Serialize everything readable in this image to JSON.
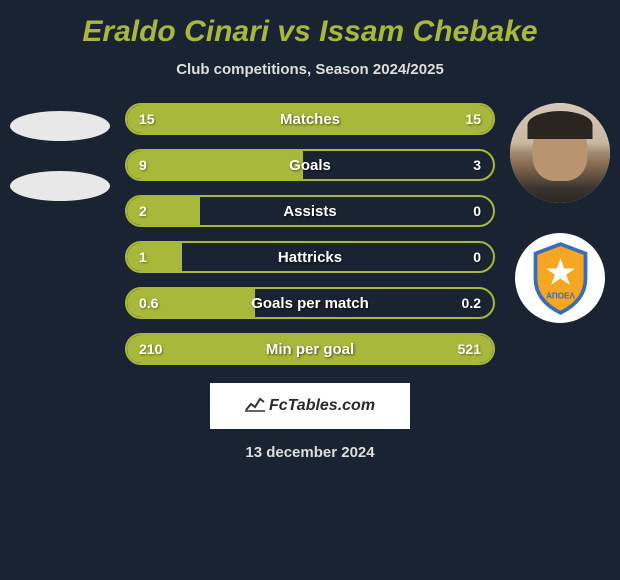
{
  "title": "Eraldo Cinari vs Issam Chebake",
  "subtitle": "Club competitions, Season 2024/2025",
  "date": "13 december 2024",
  "brand": "FcTables.com",
  "colors": {
    "background": "#1a2332",
    "accent": "#a8b83a",
    "text_light": "#ffffff",
    "text_muted": "#dddddd",
    "brand_bg": "#ffffff",
    "brand_text": "#2a2a2a"
  },
  "club_badge": {
    "text": "ΑΠΟΕΛ",
    "shield_fill": "#f5a623",
    "shield_stroke": "#3a6db5",
    "star_fill": "#ffffff"
  },
  "stats": [
    {
      "label": "Matches",
      "left_val": "15",
      "right_val": "15",
      "left_pct": 50,
      "right_pct": 50
    },
    {
      "label": "Goals",
      "left_val": "9",
      "right_val": "3",
      "left_pct": 48,
      "right_pct": 0
    },
    {
      "label": "Assists",
      "left_val": "2",
      "right_val": "0",
      "left_pct": 20,
      "right_pct": 0
    },
    {
      "label": "Hattricks",
      "left_val": "1",
      "right_val": "0",
      "left_pct": 15,
      "right_pct": 0
    },
    {
      "label": "Goals per match",
      "left_val": "0.6",
      "right_val": "0.2",
      "left_pct": 35,
      "right_pct": 0
    },
    {
      "label": "Min per goal",
      "left_val": "210",
      "right_val": "521",
      "left_pct": 50,
      "right_pct": 50
    }
  ],
  "layout": {
    "stat_row_height": 32,
    "stat_row_gap": 14,
    "stat_font_size": 14,
    "label_font_size": 15,
    "title_font_size": 30,
    "avatar_diameter": 100
  }
}
